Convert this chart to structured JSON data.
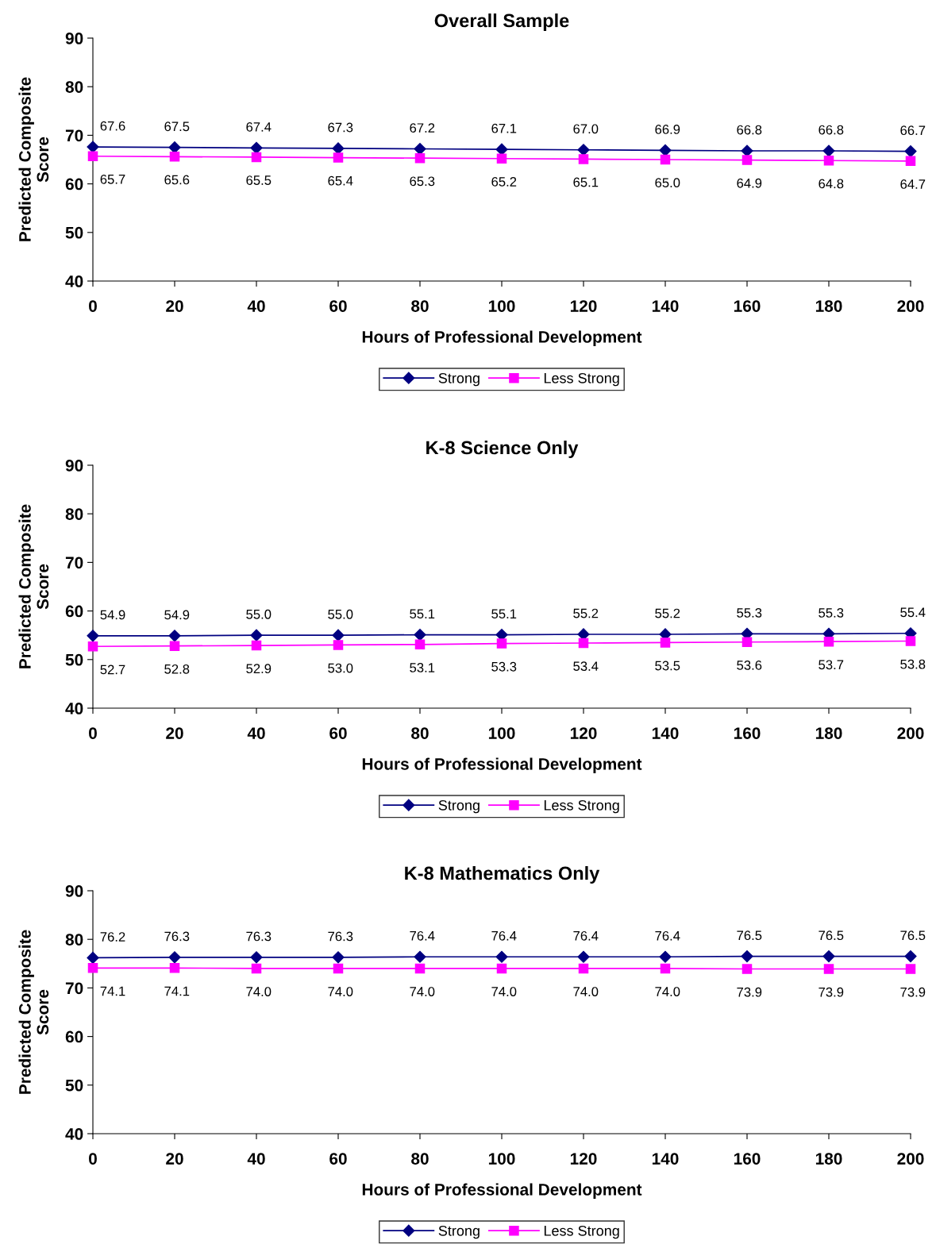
{
  "chart_data": [
    {
      "type": "line",
      "title": "Overall Sample",
      "xlabel": "Hours of Professional Development",
      "ylabel": "Predicted Composite\nScore",
      "x": [
        0,
        20,
        40,
        60,
        80,
        100,
        120,
        140,
        160,
        180,
        200
      ],
      "xlim": [
        0,
        200
      ],
      "xticks": [
        0,
        20,
        40,
        60,
        80,
        100,
        120,
        140,
        160,
        180,
        200
      ],
      "ylim": [
        40,
        90
      ],
      "yticks": [
        40,
        50,
        60,
        70,
        80,
        90
      ],
      "grid": false,
      "legend": "bottom",
      "series": [
        {
          "name": "Strong",
          "color": "#000080",
          "marker": "diamond",
          "values": [
            67.6,
            67.5,
            67.4,
            67.3,
            67.2,
            67.1,
            67.0,
            66.9,
            66.8,
            66.8,
            66.7
          ],
          "value_labels": [
            "67.6",
            "67.5",
            "67.4",
            "67.3",
            "67.2",
            "67.1",
            "67.0",
            "66.9",
            "66.8",
            "66.8",
            "66.7"
          ]
        },
        {
          "name": "Less Strong",
          "color": "#ff00ff",
          "marker": "square",
          "values": [
            65.7,
            65.6,
            65.5,
            65.4,
            65.3,
            65.2,
            65.1,
            65.0,
            64.9,
            64.8,
            64.7
          ],
          "value_labels": [
            "65.7",
            "65.6",
            "65.5",
            "65.4",
            "65.3",
            "65.2",
            "65.1",
            "65.0",
            "64.9",
            "64.8",
            "64.7"
          ]
        }
      ]
    },
    {
      "type": "line",
      "title": "K-8 Science Only",
      "xlabel": "Hours of Professional Development",
      "ylabel": "Predicted Composite\nScore",
      "x": [
        0,
        20,
        40,
        60,
        80,
        100,
        120,
        140,
        160,
        180,
        200
      ],
      "xlim": [
        0,
        200
      ],
      "xticks": [
        0,
        20,
        40,
        60,
        80,
        100,
        120,
        140,
        160,
        180,
        200
      ],
      "ylim": [
        40,
        90
      ],
      "yticks": [
        40,
        50,
        60,
        70,
        80,
        90
      ],
      "grid": false,
      "legend": "bottom",
      "series": [
        {
          "name": "Strong",
          "color": "#000080",
          "marker": "diamond",
          "values": [
            54.9,
            54.9,
            55.0,
            55.0,
            55.1,
            55.1,
            55.2,
            55.2,
            55.3,
            55.3,
            55.4
          ],
          "value_labels": [
            "54.9",
            "54.9",
            "55.0",
            "55.0",
            "55.1",
            "55.1",
            "55.2",
            "55.2",
            "55.3",
            "55.3",
            "55.4"
          ]
        },
        {
          "name": "Less Strong",
          "color": "#ff00ff",
          "marker": "square",
          "values": [
            52.7,
            52.8,
            52.9,
            53.0,
            53.1,
            53.3,
            53.4,
            53.5,
            53.6,
            53.7,
            53.8
          ],
          "value_labels": [
            "52.7",
            "52.8",
            "52.9",
            "53.0",
            "53.1",
            "53.3",
            "53.4",
            "53.5",
            "53.6",
            "53.7",
            "53.8"
          ]
        }
      ]
    },
    {
      "type": "line",
      "title": "K-8 Mathematics Only",
      "xlabel": "Hours of Professional Development",
      "ylabel": "Predicted Composite\nScore",
      "x": [
        0,
        20,
        40,
        60,
        80,
        100,
        120,
        140,
        160,
        180,
        200
      ],
      "xlim": [
        0,
        200
      ],
      "xticks": [
        0,
        20,
        40,
        60,
        80,
        100,
        120,
        140,
        160,
        180,
        200
      ],
      "ylim": [
        40,
        90
      ],
      "yticks": [
        40,
        50,
        60,
        70,
        80,
        90
      ],
      "grid": false,
      "legend": "bottom",
      "series": [
        {
          "name": "Strong",
          "color": "#000080",
          "marker": "diamond",
          "values": [
            76.2,
            76.3,
            76.3,
            76.3,
            76.4,
            76.4,
            76.4,
            76.4,
            76.5,
            76.5,
            76.5
          ],
          "value_labels": [
            "76.2",
            "76.3",
            "76.3",
            "76.3",
            "76.4",
            "76.4",
            "76.4",
            "76.4",
            "76.5",
            "76.5",
            "76.5"
          ]
        },
        {
          "name": "Less Strong",
          "color": "#ff00ff",
          "marker": "square",
          "values": [
            74.1,
            74.1,
            74.0,
            74.0,
            74.0,
            74.0,
            74.0,
            74.0,
            73.9,
            73.9,
            73.9
          ],
          "value_labels": [
            "74.1",
            "74.1",
            "74.0",
            "74.0",
            "74.0",
            "74.0",
            "74.0",
            "74.0",
            "73.9",
            "73.9",
            "73.9"
          ]
        }
      ]
    }
  ]
}
